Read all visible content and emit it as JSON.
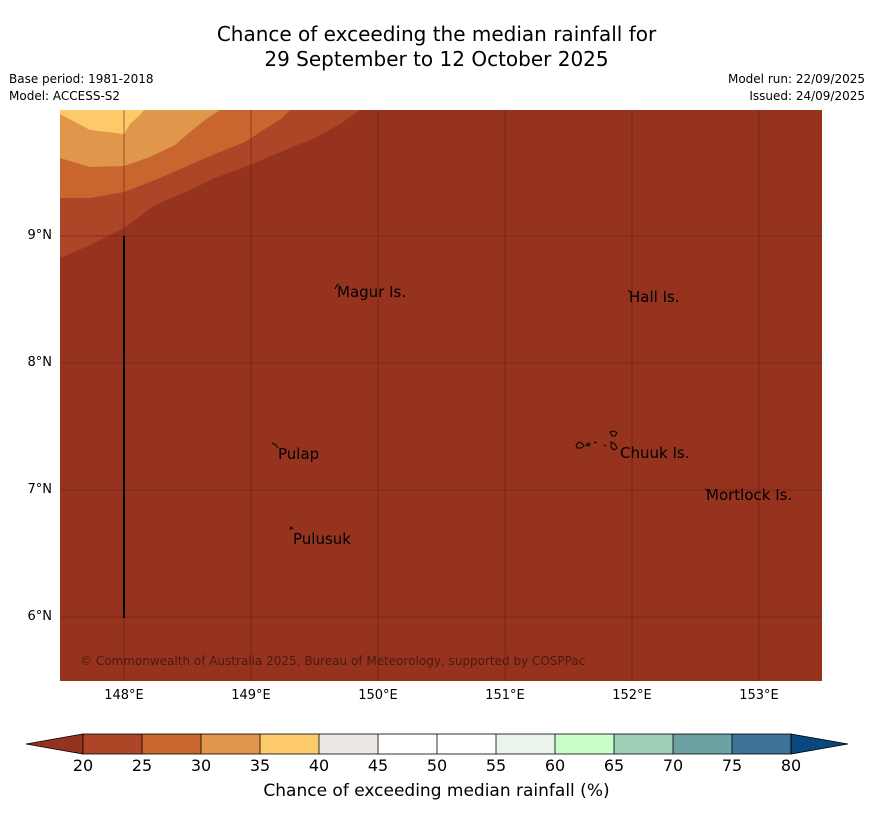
{
  "title": {
    "line1": "Chance of exceeding the median rainfall for",
    "line2": "29 September to 12 October 2025"
  },
  "meta": {
    "base_period": "Base period: 1981-2018",
    "model": "Model: ACCESS-S2",
    "model_run": "Model run: 22/09/2025",
    "issued": "Issued: 24/09/2025"
  },
  "map": {
    "lat_labels": [
      "9°N",
      "8°N",
      "7°N",
      "6°N"
    ],
    "lon_labels": [
      "148°E",
      "149°E",
      "150°E",
      "151°E",
      "152°E",
      "153°E"
    ],
    "places": [
      "Magur Is.",
      "Hall Is.",
      "Pulap",
      "Chuuk Is.",
      "Mortlock Is.",
      "Pulusuk"
    ],
    "copyright": "© Commonwealth of Australia 2025, Bureau of Meteorology, supported by COSPPac",
    "background_color": "#96331f"
  },
  "colorbar": {
    "label": "Chance of exceeding median rainfall (%)",
    "ticks": [
      "20",
      "25",
      "30",
      "35",
      "40",
      "45",
      "50",
      "55",
      "60",
      "65",
      "70",
      "75",
      "80"
    ],
    "colors": [
      "#ac4627",
      "#c9662f",
      "#e0964b",
      "#fdca6a",
      "#ebe8e5",
      "#ffffff",
      "#ffffff",
      "#ebf4ea",
      "#c9fdc9",
      "#9ccfb6",
      "#6da2a5",
      "#3c7397"
    ],
    "under_color": "#96331f",
    "over_color": "#08477f"
  }
}
